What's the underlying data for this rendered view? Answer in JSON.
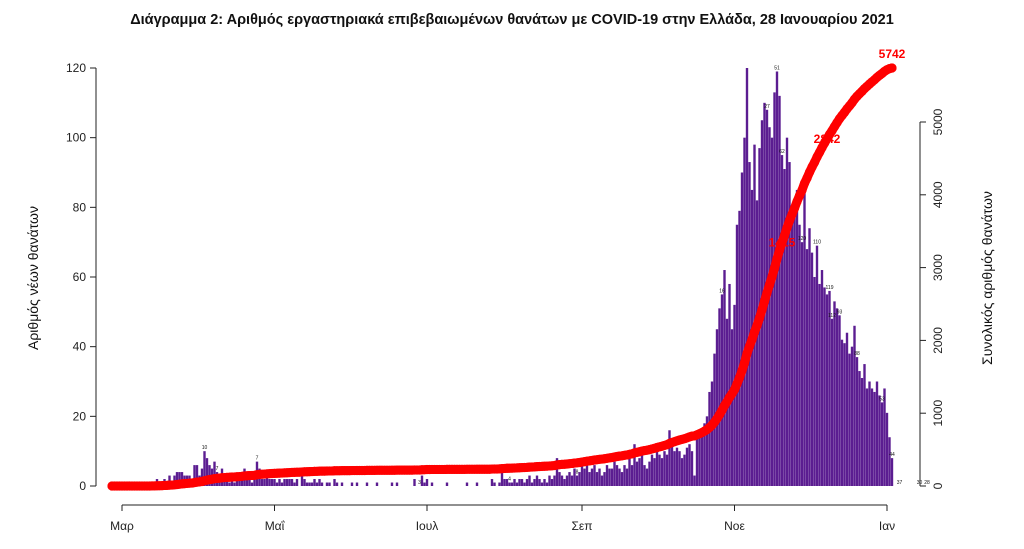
{
  "chart_data": {
    "type": "bar",
    "title": "Διάγραμμα 2: Αριθμός εργαστηριακά επιβεβαιωμένων θανάτων με COVID-19 στην Ελλάδα, 28 Ιανουαρίου 2021",
    "ylabel_left": "Αριθμός νέων θανάτων",
    "ylabel_right": "Συνολικός αριθμός θανάτων",
    "ylim_left": [
      0,
      120
    ],
    "yticks_left": [
      0,
      20,
      40,
      60,
      80,
      100,
      120
    ],
    "ylim_right": [
      0,
      5000
    ],
    "yticks_right": [
      0,
      1000,
      2000,
      3000,
      4000,
      5000
    ],
    "x_start_date": "2020-02-26",
    "x_end_date": "2021-01-28",
    "month_ticks": [
      {
        "label": "Μαρ",
        "date": "2020-03-01"
      },
      {
        "label": "Μαΐ",
        "date": "2020-05-01"
      },
      {
        "label": "Ιουλ",
        "date": "2020-07-01"
      },
      {
        "label": "Σεπ",
        "date": "2020-09-01"
      },
      {
        "label": "Νοε",
        "date": "2020-11-01"
      },
      {
        "label": "Ιαν",
        "date": "2021-01-01"
      }
    ],
    "series": [
      {
        "name": "Αριθμός νέων θανάτων",
        "kind": "bar",
        "color": "#5b1d91",
        "daily_values": [
          0,
          0,
          0,
          0,
          0,
          0,
          0,
          0,
          0,
          0,
          0,
          0,
          0,
          0,
          0,
          0,
          1,
          0,
          2,
          1,
          1,
          2,
          1,
          3,
          1,
          3,
          4,
          4,
          4,
          3,
          3,
          3,
          2,
          6,
          6,
          3,
          5,
          10,
          8,
          6,
          5,
          7,
          4,
          3,
          5,
          2,
          3,
          1,
          3,
          1,
          3,
          2,
          3,
          5,
          2,
          3,
          1,
          2,
          7,
          5,
          2,
          2,
          3,
          2,
          2,
          2,
          1,
          2,
          1,
          2,
          2,
          2,
          2,
          1,
          2,
          0,
          3,
          2,
          1,
          1,
          1,
          2,
          1,
          2,
          1,
          0,
          1,
          1,
          0,
          2,
          1,
          0,
          1,
          0,
          0,
          0,
          1,
          0,
          1,
          0,
          0,
          0,
          1,
          0,
          0,
          0,
          1,
          0,
          0,
          0,
          0,
          0,
          1,
          0,
          1,
          0,
          0,
          0,
          0,
          0,
          0,
          2,
          0,
          0,
          3,
          1,
          2,
          0,
          1,
          0,
          0,
          0,
          0,
          0,
          1,
          0,
          0,
          0,
          0,
          0,
          0,
          0,
          1,
          0,
          0,
          0,
          1,
          0,
          0,
          0,
          0,
          0,
          2,
          1,
          0,
          1,
          4,
          2,
          2,
          1,
          1,
          2,
          1,
          2,
          2,
          1,
          2,
          3,
          1,
          2,
          3,
          2,
          1,
          2,
          1,
          3,
          2,
          3,
          8,
          4,
          3,
          2,
          3,
          4,
          3,
          5,
          3,
          4,
          6,
          5,
          6,
          4,
          5,
          6,
          4,
          5,
          3,
          4,
          6,
          5,
          5,
          7,
          6,
          5,
          4,
          6,
          5,
          8,
          6,
          12,
          7,
          8,
          9,
          6,
          5,
          7,
          9,
          8,
          10,
          9,
          8,
          10,
          9,
          16,
          13,
          10,
          11,
          10,
          8,
          9,
          11,
          12,
          10,
          3,
          14,
          14,
          15,
          18,
          20,
          27,
          30,
          38,
          45,
          51,
          55,
          62,
          48,
          58,
          45,
          52,
          75,
          79,
          90,
          100,
          120,
          93,
          85,
          98,
          82,
          97,
          105,
          110,
          108,
          103,
          100,
          113,
          119,
          112,
          95,
          91,
          100,
          93,
          78,
          80,
          85,
          75,
          70,
          88,
          68,
          74,
          67,
          60,
          69,
          58,
          62,
          57,
          55,
          56,
          48,
          53,
          51,
          49,
          42,
          41,
          44,
          38,
          40,
          46,
          37,
          33,
          31,
          35,
          28,
          30,
          28,
          27,
          30,
          26,
          24,
          28,
          21,
          14,
          8
        ]
      },
      {
        "name": "Συνολικός αριθμός θανάτων",
        "kind": "cumulative",
        "color": "#ff0000"
      }
    ],
    "bar_labels": [
      {
        "day": 37,
        "text": "10"
      },
      {
        "day": 42,
        "text": "7"
      },
      {
        "day": 58,
        "text": "7"
      },
      {
        "day": 123,
        "text": "3"
      },
      {
        "day": 159,
        "text": "4"
      },
      {
        "day": 186,
        "text": "8"
      },
      {
        "day": 216,
        "text": "12"
      },
      {
        "day": 244,
        "text": "16"
      },
      {
        "day": 262,
        "text": "27"
      },
      {
        "day": 266,
        "text": "51"
      },
      {
        "day": 268,
        "text": "62"
      },
      {
        "day": 276,
        "text": "120"
      },
      {
        "day": 282,
        "text": "110"
      },
      {
        "day": 287,
        "text": "119"
      },
      {
        "day": 288,
        "text": "112"
      },
      {
        "day": 291,
        "text": "93"
      },
      {
        "day": 298,
        "text": "88"
      },
      {
        "day": 308,
        "text": "53"
      },
      {
        "day": 312,
        "text": "44"
      },
      {
        "day": 315,
        "text": "37"
      },
      {
        "day": 323,
        "text": "30"
      },
      {
        "day": 326,
        "text": "28"
      }
    ],
    "cumulative_labels": [
      {
        "day": 268,
        "text": "1415"
      },
      {
        "day": 286,
        "text": "2842"
      },
      {
        "day": 334,
        "text": "5742"
      }
    ],
    "final_cumulative": 5742
  }
}
